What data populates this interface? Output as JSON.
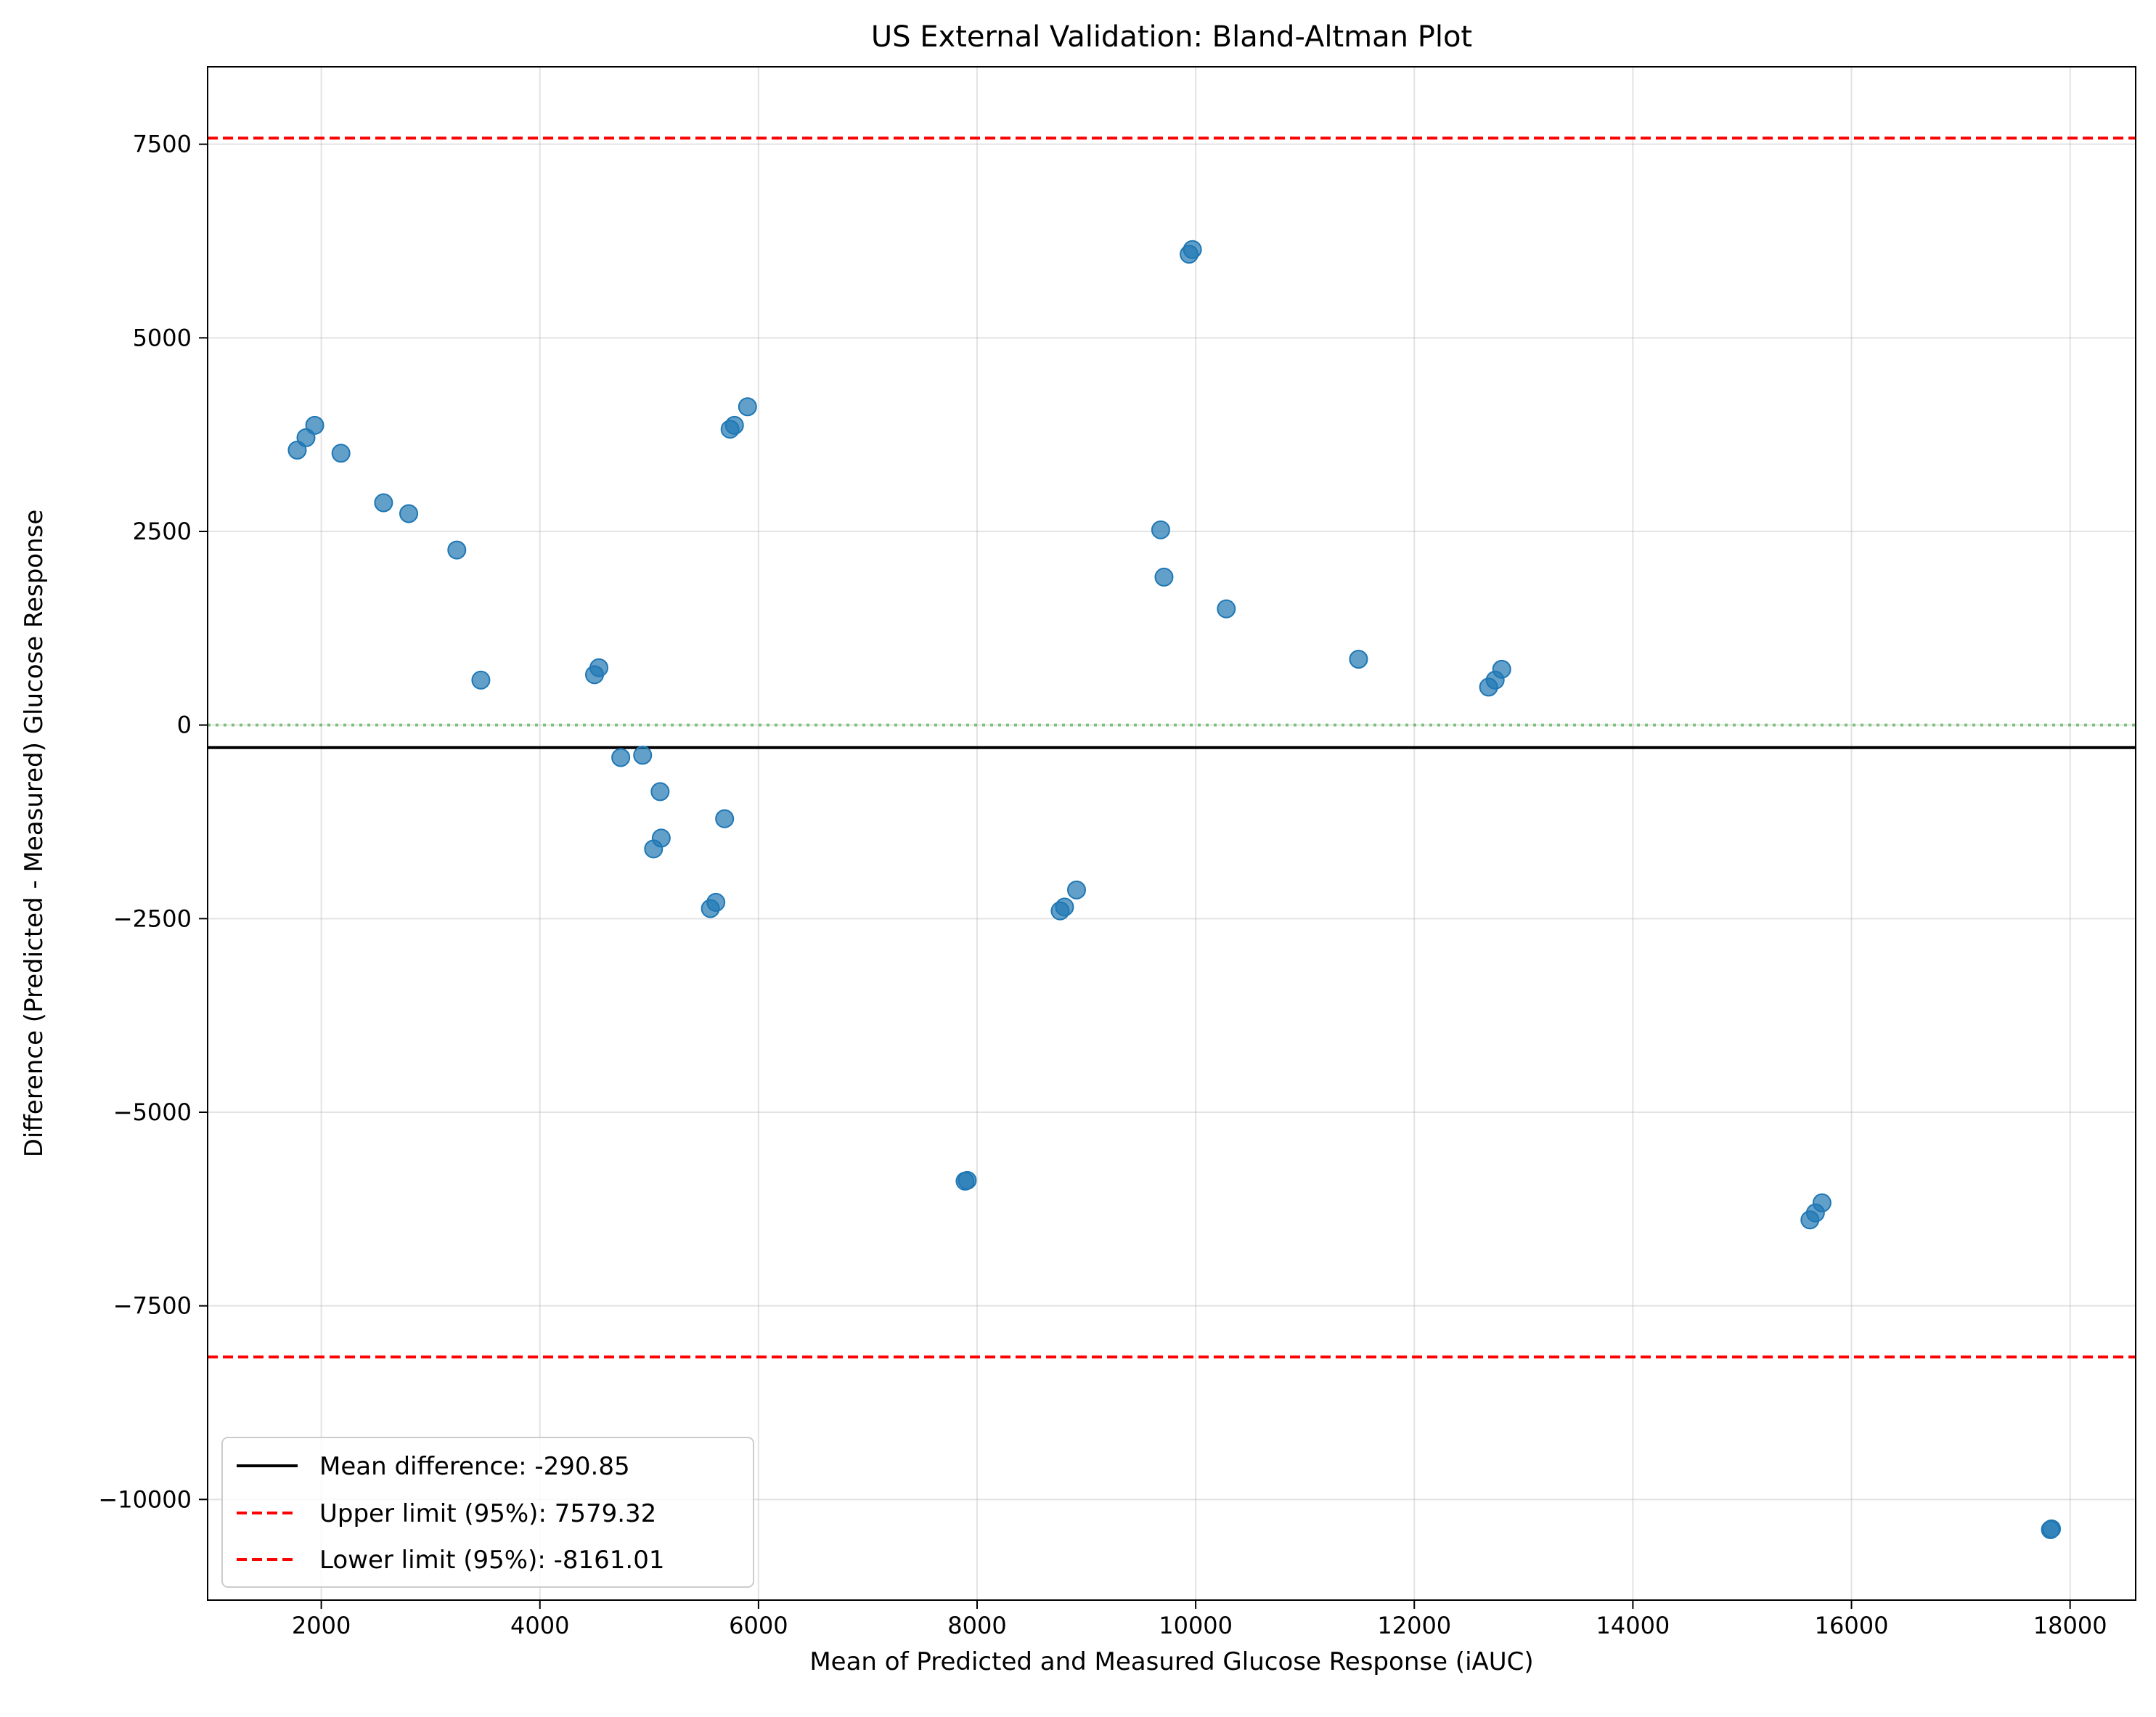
{
  "chart_data": {
    "type": "scatter",
    "title": "US External Validation: Bland-Altman Plot",
    "xlabel": "Mean of Predicted and Measured Glucose Response (iAUC)",
    "ylabel": "Difference (Predicted - Measured) Glucose Response",
    "xlim": [
      960,
      18600
    ],
    "ylim": [
      -11300,
      8500
    ],
    "xticks": [
      2000,
      4000,
      6000,
      8000,
      10000,
      12000,
      14000,
      16000,
      18000
    ],
    "yticks": [
      -10000,
      -7500,
      -5000,
      -2500,
      0,
      2500,
      5000,
      7500
    ],
    "xtick_labels": [
      "2000",
      "4000",
      "6000",
      "8000",
      "10000",
      "12000",
      "14000",
      "16000",
      "18000"
    ],
    "ytick_labels": [
      "−10000",
      "−7500",
      "−5000",
      "−2500",
      "0",
      "2500",
      "5000",
      "7500"
    ],
    "grid": true,
    "legend_position": "lower-left",
    "point_color": "#1f77b4",
    "points": [
      {
        "x": 1780,
        "y": 3550
      },
      {
        "x": 1860,
        "y": 3710
      },
      {
        "x": 1940,
        "y": 3870
      },
      {
        "x": 2180,
        "y": 3510
      },
      {
        "x": 2570,
        "y": 2870
      },
      {
        "x": 2800,
        "y": 2730
      },
      {
        "x": 3240,
        "y": 2260
      },
      {
        "x": 3460,
        "y": 580
      },
      {
        "x": 4500,
        "y": 650
      },
      {
        "x": 4540,
        "y": 740
      },
      {
        "x": 4740,
        "y": -420
      },
      {
        "x": 4940,
        "y": -390
      },
      {
        "x": 5100,
        "y": -860
      },
      {
        "x": 5110,
        "y": -1460
      },
      {
        "x": 5040,
        "y": -1600
      },
      {
        "x": 5560,
        "y": -2370
      },
      {
        "x": 5610,
        "y": -2290
      },
      {
        "x": 5690,
        "y": -1210
      },
      {
        "x": 5740,
        "y": 3820
      },
      {
        "x": 5780,
        "y": 3870
      },
      {
        "x": 5900,
        "y": 4110
      },
      {
        "x": 7890,
        "y": -5890
      },
      {
        "x": 7910,
        "y": -5880
      },
      {
        "x": 8760,
        "y": -2400
      },
      {
        "x": 8800,
        "y": -2350
      },
      {
        "x": 8910,
        "y": -2130
      },
      {
        "x": 9680,
        "y": 2520
      },
      {
        "x": 9710,
        "y": 1910
      },
      {
        "x": 9940,
        "y": 6080
      },
      {
        "x": 9970,
        "y": 6140
      },
      {
        "x": 10280,
        "y": 1500
      },
      {
        "x": 11490,
        "y": 850
      },
      {
        "x": 12680,
        "y": 490
      },
      {
        "x": 12740,
        "y": 580
      },
      {
        "x": 12800,
        "y": 720
      },
      {
        "x": 15620,
        "y": -6390
      },
      {
        "x": 15670,
        "y": -6300
      },
      {
        "x": 15730,
        "y": -6170
      },
      {
        "x": 17820,
        "y": -10390
      },
      {
        "x": 17830,
        "y": -10380
      }
    ],
    "reference_lines": [
      {
        "name": "Mean difference",
        "value": -290.85,
        "label": "Mean difference: -290.85",
        "color": "#000000",
        "style": "solid"
      },
      {
        "name": "Upper limit (95%)",
        "value": 7579.32,
        "label": "Upper limit (95%): 7579.32",
        "color": "#ff0000",
        "style": "dashed"
      },
      {
        "name": "Lower limit (95%)",
        "value": -8161.01,
        "label": "Lower limit (95%): -8161.01",
        "color": "#ff0000",
        "style": "dashed"
      },
      {
        "name": "zero",
        "value": 0,
        "color": "#4caf50",
        "style": "dotted",
        "in_legend": false
      }
    ]
  }
}
